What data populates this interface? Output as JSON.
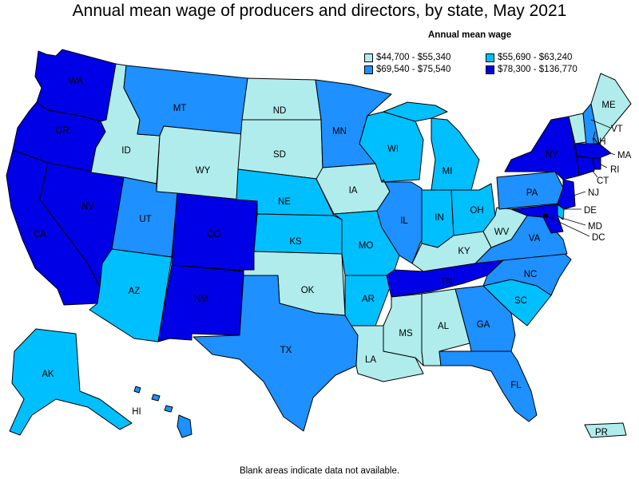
{
  "title": "Annual mean wage of producers and directors, by state, May 2021",
  "legend": {
    "title": "Annual mean wage",
    "items": [
      {
        "label": "$44,700 - $55,340",
        "color": "#b0ecec"
      },
      {
        "label": "$55,690 - $63,240",
        "color": "#00bfff"
      },
      {
        "label": "$69,540 - $75,540",
        "color": "#1e90ff"
      },
      {
        "label": "$78,300 - $136,770",
        "color": "#0000e6"
      }
    ]
  },
  "footnote": "Blank areas indicate data not available.",
  "states": {
    "WA": {
      "label": "WA",
      "tier": 3
    },
    "OR": {
      "label": "OR",
      "tier": 3
    },
    "CA": {
      "label": "CA",
      "tier": 3
    },
    "NV": {
      "label": "NV",
      "tier": 3
    },
    "ID": {
      "label": "ID",
      "tier": 0
    },
    "MT": {
      "label": "MT",
      "tier": 2
    },
    "WY": {
      "label": "WY",
      "tier": 0
    },
    "UT": {
      "label": "UT",
      "tier": 2
    },
    "CO": {
      "label": "CO",
      "tier": 3
    },
    "AZ": {
      "label": "AZ",
      "tier": 1
    },
    "NM": {
      "label": "NM",
      "tier": 3
    },
    "ND": {
      "label": "ND",
      "tier": 0
    },
    "SD": {
      "label": "SD",
      "tier": 0
    },
    "NE": {
      "label": "NE",
      "tier": 1
    },
    "KS": {
      "label": "KS",
      "tier": 1
    },
    "OK": {
      "label": "OK",
      "tier": 0
    },
    "TX": {
      "label": "TX",
      "tier": 2
    },
    "MN": {
      "label": "MN",
      "tier": 2
    },
    "IA": {
      "label": "IA",
      "tier": 0
    },
    "MO": {
      "label": "MO",
      "tier": 1
    },
    "AR": {
      "label": "AR",
      "tier": 1
    },
    "LA": {
      "label": "LA",
      "tier": 0
    },
    "WI": {
      "label": "WI",
      "tier": 1
    },
    "IL": {
      "label": "IL",
      "tier": 2
    },
    "MI": {
      "label": "MI",
      "tier": 1
    },
    "IN": {
      "label": "IN",
      "tier": 1
    },
    "OH": {
      "label": "OH",
      "tier": 1
    },
    "KY": {
      "label": "KY",
      "tier": 0
    },
    "TN": {
      "label": "TN",
      "tier": 3
    },
    "MS": {
      "label": "MS",
      "tier": 0
    },
    "AL": {
      "label": "AL",
      "tier": 0
    },
    "GA": {
      "label": "GA",
      "tier": 2
    },
    "FL": {
      "label": "FL",
      "tier": 2
    },
    "SC": {
      "label": "SC",
      "tier": 1
    },
    "NC": {
      "label": "NC",
      "tier": 2
    },
    "VA": {
      "label": "VA",
      "tier": 2
    },
    "WV": {
      "label": "WV",
      "tier": 0
    },
    "PA": {
      "label": "PA",
      "tier": 2
    },
    "NY": {
      "label": "NY",
      "tier": 3
    },
    "VT": {
      "label": "VT",
      "tier": 0
    },
    "NH": {
      "label": "NH",
      "tier": 2
    },
    "ME": {
      "label": "ME",
      "tier": 0
    },
    "MA": {
      "label": "MA",
      "tier": 3
    },
    "RI": {
      "label": "RI",
      "tier": 3
    },
    "CT": {
      "label": "CT",
      "tier": 3
    },
    "NJ": {
      "label": "NJ",
      "tier": 3
    },
    "DE": {
      "label": "DE",
      "tier": 1
    },
    "MD": {
      "label": "MD",
      "tier": 3
    },
    "DC": {
      "label": "DC",
      "tier": 3
    },
    "AK": {
      "label": "AK",
      "tier": 1
    },
    "HI": {
      "label": "HI",
      "tier": 2
    },
    "PR": {
      "label": "PR",
      "tier": 0
    }
  }
}
